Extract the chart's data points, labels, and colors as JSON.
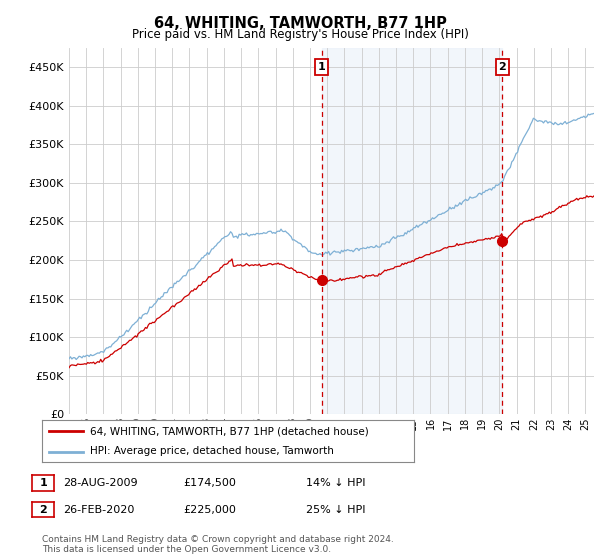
{
  "title": "64, WHITING, TAMWORTH, B77 1HP",
  "subtitle": "Price paid vs. HM Land Registry's House Price Index (HPI)",
  "legend_line1": "64, WHITING, TAMWORTH, B77 1HP (detached house)",
  "legend_line2": "HPI: Average price, detached house, Tamworth",
  "annotation1_date": "28-AUG-2009",
  "annotation1_price": "£174,500",
  "annotation1_hpi": "14% ↓ HPI",
  "annotation1_year": 2009.67,
  "annotation1_value": 174500,
  "annotation2_date": "26-FEB-2020",
  "annotation2_price": "£225,000",
  "annotation2_hpi": "25% ↓ HPI",
  "annotation2_year": 2020.17,
  "annotation2_value": 225000,
  "footer": "Contains HM Land Registry data © Crown copyright and database right 2024.\nThis data is licensed under the Open Government Licence v3.0.",
  "hpi_color": "#7eb0d5",
  "price_color": "#cc0000",
  "annotation_color": "#cc0000",
  "shade_color": "#dce8f5",
  "grid_color": "#cccccc",
  "bg_color": "#ffffff",
  "ylim": [
    0,
    475000
  ],
  "yticks": [
    0,
    50000,
    100000,
    150000,
    200000,
    250000,
    300000,
    350000,
    400000,
    450000
  ],
  "xmin": 1995.0,
  "xmax": 2025.5
}
